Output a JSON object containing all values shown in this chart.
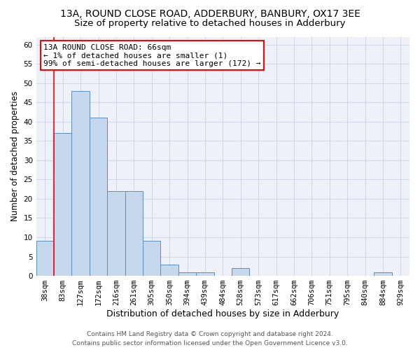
{
  "title": "13A, ROUND CLOSE ROAD, ADDERBURY, BANBURY, OX17 3EE",
  "subtitle": "Size of property relative to detached houses in Adderbury",
  "xlabel": "Distribution of detached houses by size in Adderbury",
  "ylabel": "Number of detached properties",
  "categories": [
    "38sqm",
    "83sqm",
    "127sqm",
    "172sqm",
    "216sqm",
    "261sqm",
    "305sqm",
    "350sqm",
    "394sqm",
    "439sqm",
    "484sqm",
    "528sqm",
    "573sqm",
    "617sqm",
    "662sqm",
    "706sqm",
    "751sqm",
    "795sqm",
    "840sqm",
    "884sqm",
    "929sqm"
  ],
  "values": [
    9,
    37,
    48,
    41,
    22,
    22,
    9,
    3,
    1,
    1,
    0,
    2,
    0,
    0,
    0,
    0,
    0,
    0,
    0,
    1,
    0
  ],
  "bar_color": "#c5d8ed",
  "bar_edge_color": "#5a8fc0",
  "annotation_text": "13A ROUND CLOSE ROAD: 66sqm\n← 1% of detached houses are smaller (1)\n99% of semi-detached houses are larger (172) →",
  "annotation_box_color": "white",
  "annotation_box_edge_color": "red",
  "red_line_x": 0.5,
  "ylim": [
    0,
    62
  ],
  "yticks": [
    0,
    5,
    10,
    15,
    20,
    25,
    30,
    35,
    40,
    45,
    50,
    55,
    60
  ],
  "grid_color": "#d0d8e8",
  "background_color": "#eef2f8",
  "footer_text": "Contains HM Land Registry data © Crown copyright and database right 2024.\nContains public sector information licensed under the Open Government Licence v3.0.",
  "title_fontsize": 10,
  "subtitle_fontsize": 9.5,
  "xlabel_fontsize": 9,
  "ylabel_fontsize": 8.5,
  "tick_fontsize": 7.5,
  "annotation_fontsize": 8,
  "footer_fontsize": 6.5
}
